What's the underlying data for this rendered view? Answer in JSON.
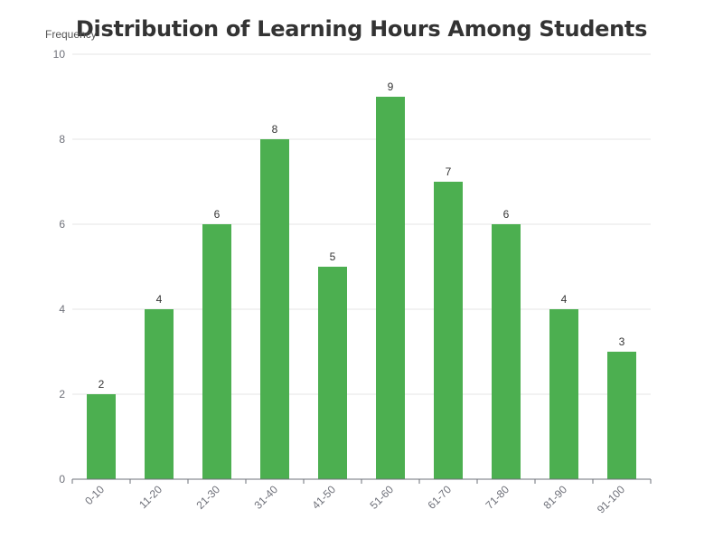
{
  "chart_data": {
    "type": "bar",
    "title": "Distribution of Learning Hours Among Students",
    "xlabel": "",
    "ylabel": "Frequency",
    "categories": [
      "0-10",
      "11-20",
      "21-30",
      "31-40",
      "41-50",
      "51-60",
      "61-70",
      "71-80",
      "81-90",
      "91-100"
    ],
    "values": [
      2,
      4,
      6,
      8,
      5,
      9,
      7,
      6,
      4,
      3
    ],
    "ylim": [
      0,
      10
    ],
    "yticks": [
      0,
      2,
      4,
      6,
      8,
      10
    ],
    "grid": true,
    "legend": "none",
    "data_labels": true,
    "bar_color": "#4caf50",
    "label_color": "#333333",
    "axis_color": "#6e7079",
    "tick_label_color": "#6e7079",
    "grid_color": "#e6e6e6"
  }
}
